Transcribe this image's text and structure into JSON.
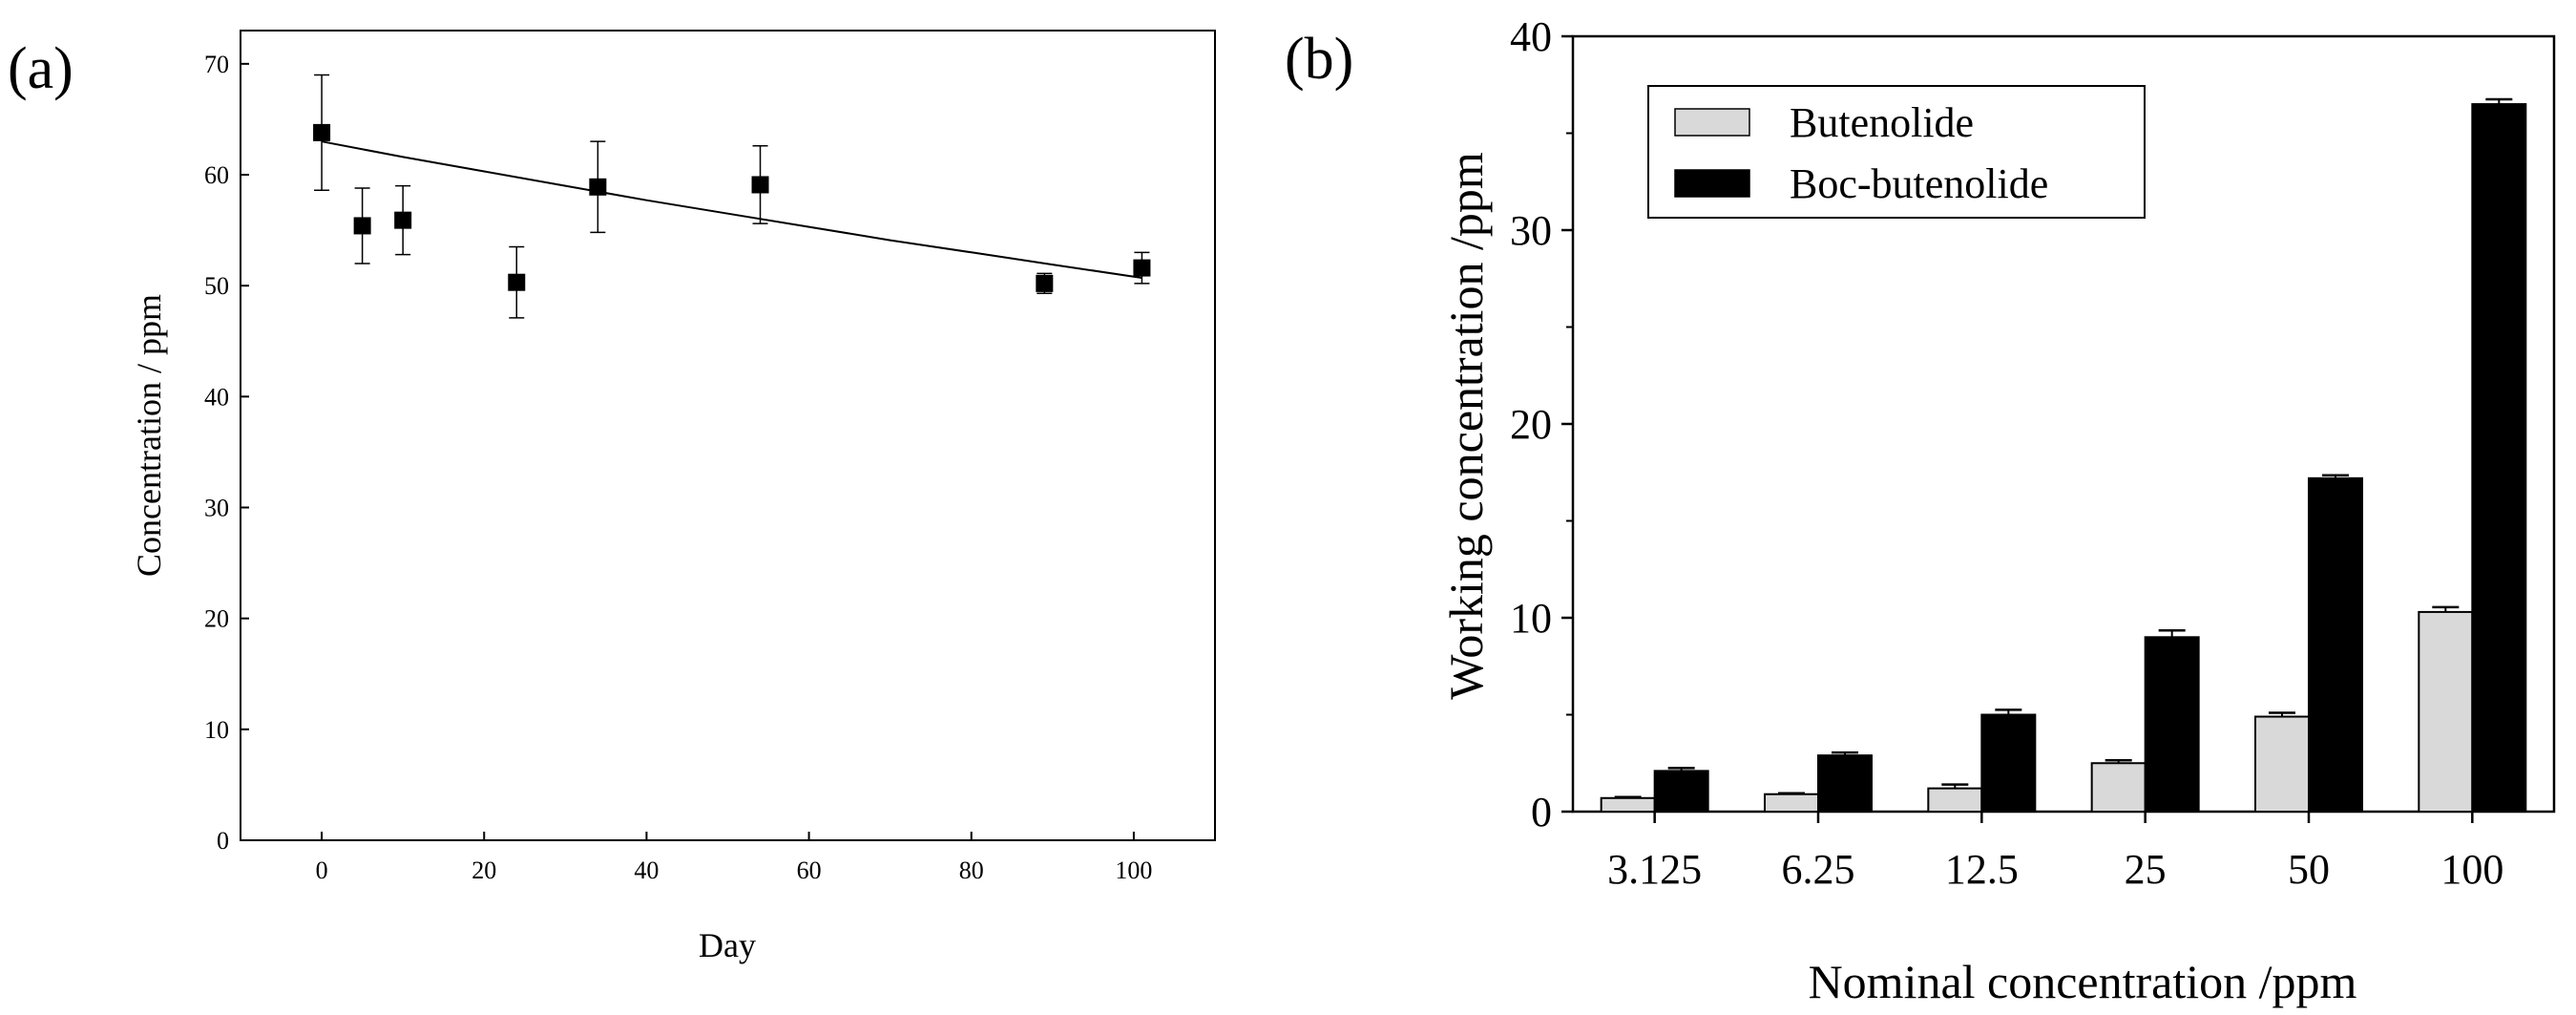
{
  "panels": {
    "a": {
      "label": "(a)"
    },
    "b": {
      "label": "(b)"
    }
  },
  "chart_data": [
    {
      "type": "scatter",
      "panel": "a",
      "title": "",
      "xlabel": "Day",
      "ylabel": "Concentration / ppm",
      "xlim": [
        -10,
        110
      ],
      "ylim": [
        0,
        73
      ],
      "xticks": [
        0,
        20,
        40,
        60,
        80,
        100
      ],
      "yticks": [
        0,
        10,
        20,
        30,
        40,
        50,
        60,
        70
      ],
      "points": [
        {
          "x": 0,
          "y": 63.8,
          "err": 5.2
        },
        {
          "x": 5,
          "y": 55.4,
          "err": 3.4
        },
        {
          "x": 10,
          "y": 55.9,
          "err": 3.1
        },
        {
          "x": 24,
          "y": 50.3,
          "err": 3.2
        },
        {
          "x": 34,
          "y": 58.9,
          "err": 4.1
        },
        {
          "x": 54,
          "y": 59.1,
          "err": 3.5
        },
        {
          "x": 89,
          "y": 50.2,
          "err": 0.9
        },
        {
          "x": 101,
          "y": 51.6,
          "err": 1.4
        }
      ],
      "fit": {
        "x": [
          0,
          10,
          20,
          30,
          40,
          50,
          60,
          70,
          80,
          90,
          101
        ],
        "y": [
          63.0,
          61.6,
          60.3,
          59.0,
          57.7,
          56.5,
          55.3,
          54.1,
          53.0,
          51.9,
          50.7
        ]
      },
      "colors": {
        "marker": "#000000",
        "fit": "#000000"
      }
    },
    {
      "type": "bar",
      "panel": "b",
      "title": "",
      "xlabel": "Nominal concentration /ppm",
      "ylabel": "Working concentration /ppm",
      "categories": [
        "3.125",
        "6.25",
        "12.5",
        "25",
        "50",
        "100"
      ],
      "ylim": [
        0,
        40
      ],
      "yticks": [
        0,
        10,
        20,
        30,
        40
      ],
      "series": [
        {
          "name": "Butenolide",
          "color": "#d9d9d9",
          "values": [
            0.7,
            0.9,
            1.2,
            2.5,
            4.9,
            10.3
          ],
          "errors": [
            0.05,
            0.05,
            0.2,
            0.15,
            0.2,
            0.25
          ]
        },
        {
          "name": "Boc-butenolide",
          "color": "#000000",
          "values": [
            2.1,
            2.9,
            5.0,
            9.0,
            17.2,
            36.5
          ],
          "errors": [
            0.15,
            0.15,
            0.25,
            0.35,
            0.15,
            0.25
          ]
        }
      ],
      "legend": "top-left"
    }
  ]
}
